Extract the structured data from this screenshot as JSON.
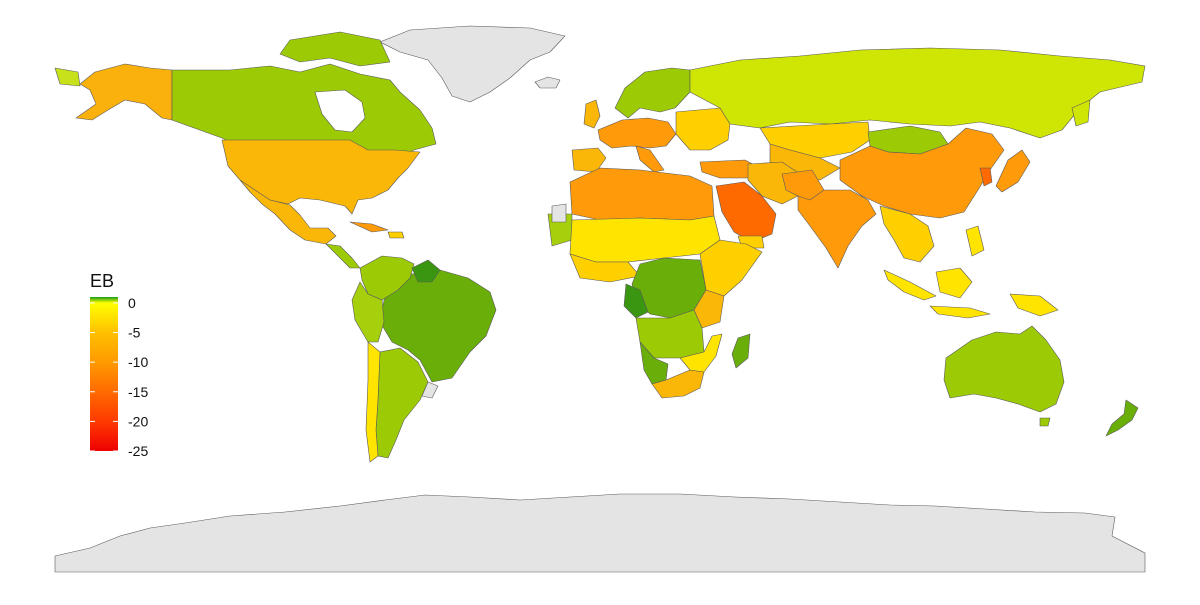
{
  "legend": {
    "title": "EB",
    "ticks": [
      {
        "value": 0,
        "label": "0"
      },
      {
        "value": -5,
        "label": "-5"
      },
      {
        "value": -10,
        "label": "-10"
      },
      {
        "value": -15,
        "label": "-15"
      },
      {
        "value": -20,
        "label": "-20"
      },
      {
        "value": -25,
        "label": "-25"
      }
    ],
    "range": [
      -25,
      1
    ],
    "color_stops": [
      {
        "value": 1,
        "color": "#1a9a1a"
      },
      {
        "value": 0,
        "color": "#ffff00"
      },
      {
        "value": -5,
        "color": "#ffc000"
      },
      {
        "value": -10,
        "color": "#ff9a00"
      },
      {
        "value": -15,
        "color": "#ff6a00"
      },
      {
        "value": -20,
        "color": "#ff3a00"
      },
      {
        "value": -25,
        "color": "#ee0000"
      }
    ]
  },
  "colors": {
    "no_data": "#e4e4e4",
    "border": "#5a5a5a",
    "background": "#ffffff"
  }
}
